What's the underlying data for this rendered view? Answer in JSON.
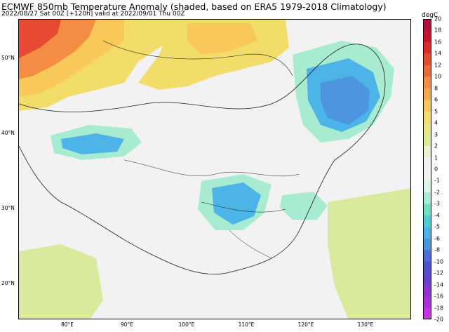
{
  "header": {
    "title": "ECMWF 850mb Temperature Anomaly (shaded, based on ERA5 1979-2018 Climatology)",
    "subtitle": "2022/08/27 Sat 00Z [+120h] valid at 2022/09/01 Thu 00Z"
  },
  "axes": {
    "lat_labels": [
      "50°N",
      "40°N",
      "30°N",
      "20°N"
    ],
    "lon_labels": [
      "80°E",
      "90°E",
      "100°E",
      "110°E",
      "120°E",
      "130°E"
    ]
  },
  "colorbar": {
    "unit": "degC",
    "ticks": [
      "20",
      "18",
      "16",
      "14",
      "12",
      "10",
      "8",
      "6",
      "5",
      "4",
      "3",
      "2",
      "1",
      "0",
      "-1",
      "-2",
      "-3",
      "-4",
      "-5",
      "-6",
      "-8",
      "-10",
      "-12",
      "-14",
      "-16",
      "-18",
      "-20"
    ],
    "colors": [
      "#b0103a",
      "#c8132e",
      "#da2a2a",
      "#e64a32",
      "#ef6a3a",
      "#f48c44",
      "#f7a94e",
      "#f8c85a",
      "#f3dd6a",
      "#e8e685",
      "#d9ea9c",
      "#ecf3cc",
      "#f2f2f2",
      "#f2f2f2",
      "#d9f5e3",
      "#a7ecd0",
      "#6ee0c3",
      "#4ccfd0",
      "#4cb4e6",
      "#4e95e0",
      "#4b6fd6",
      "#5050d0",
      "#6a40d0",
      "#8a34d6",
      "#aa30dc",
      "#cc30e6",
      "#e64ef2"
    ]
  },
  "colors": {
    "neutral": "#f2f2f2",
    "border_line": "#1a1a1a"
  }
}
